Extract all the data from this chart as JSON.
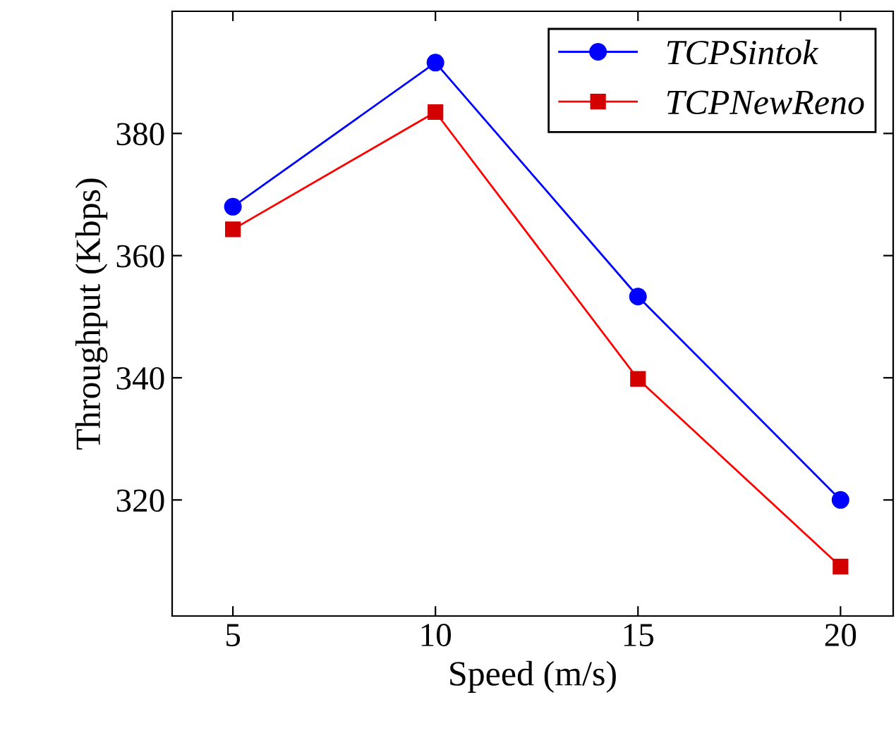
{
  "chart_data": {
    "type": "line",
    "xlabel": "Speed (m/s)",
    "ylabel": "Throughput (Kbps)",
    "x": [
      5,
      10,
      15,
      20
    ],
    "series": [
      {
        "name": "TCPSintok",
        "color": "#0000ff",
        "marker": "circle",
        "values": [
          368.0,
          391.6,
          353.3,
          320.0
        ]
      },
      {
        "name": "TCPNewReno",
        "color": "#ff0000",
        "marker": "square",
        "values": [
          364.3,
          383.5,
          339.8,
          309.1
        ]
      }
    ],
    "xlim": [
      3.5,
      21.3
    ],
    "ylim": [
      301,
      400
    ],
    "xticks": [
      5,
      10,
      15,
      20
    ],
    "yticks": [
      320,
      340,
      360,
      380
    ],
    "legend": "top right",
    "grid": false
  }
}
